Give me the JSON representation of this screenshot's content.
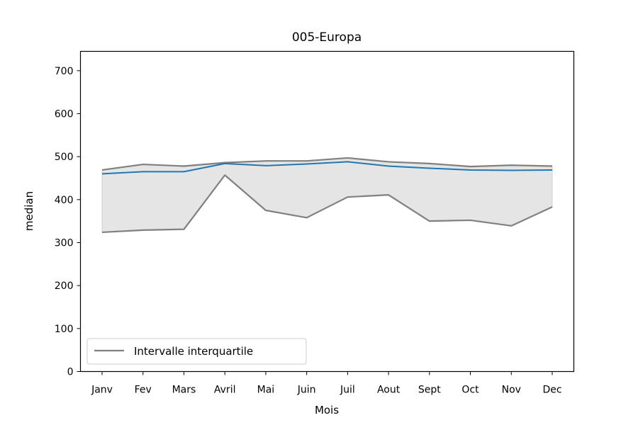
{
  "chart_data": {
    "type": "line",
    "title": "005-Europa",
    "xlabel": "Mois",
    "ylabel": "median",
    "categories": [
      "Janv",
      "Fev",
      "Mars",
      "Avril",
      "Mai",
      "Juin",
      "Juil",
      "Aout",
      "Sept",
      "Oct",
      "Nov",
      "Dec"
    ],
    "ylim": [
      0,
      745
    ],
    "yticks": [
      0,
      100,
      200,
      300,
      400,
      500,
      600,
      700
    ],
    "grid": false,
    "legend_position": "lower-left",
    "series": [
      {
        "values": [
          460,
          465,
          465,
          484,
          479,
          483,
          488,
          478,
          473,
          469,
          468,
          469
        ],
        "color": "#1f77b4"
      },
      {
        "values": [
          469,
          482,
          478,
          486,
          490,
          490,
          497,
          488,
          484,
          477,
          480,
          478
        ],
        "color": "#808080"
      },
      {
        "name": "Intervalle interquartile",
        "values": [
          324,
          329,
          331,
          457,
          375,
          358,
          406,
          411,
          350,
          352,
          339,
          383
        ],
        "color": "#808080"
      }
    ],
    "band": {
      "upper_series": 1,
      "lower_series": 2,
      "fill_color": "#e5e5e5"
    }
  }
}
